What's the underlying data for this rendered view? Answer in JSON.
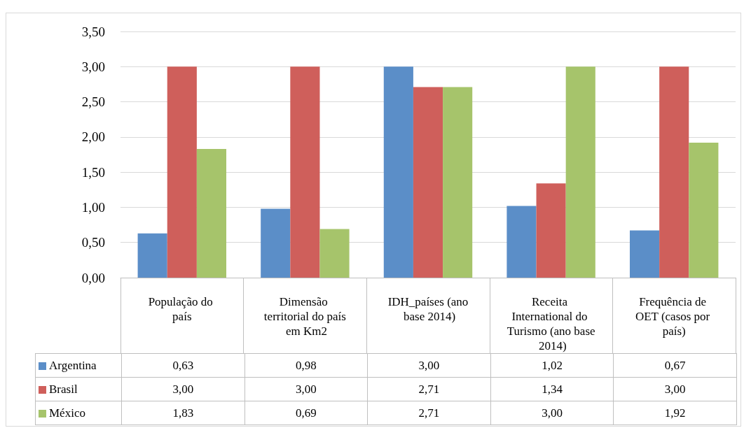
{
  "chart_data": {
    "type": "bar",
    "categories": [
      "População do país",
      "Dimensão territorial do país em Km2",
      "IDH_países (ano base 2014)",
      "Receita International do Turismo (ano base 2014)",
      "Frequência de OET (casos por país)"
    ],
    "series": [
      {
        "name": "Argentina",
        "color": "#5b8ec8",
        "values": [
          0.63,
          0.98,
          3.0,
          1.02,
          0.67
        ],
        "value_labels": [
          "0,63",
          "0,98",
          "3,00",
          "1,02",
          "0,67"
        ]
      },
      {
        "name": "Brasil",
        "color": "#cf5f5b",
        "values": [
          3.0,
          3.0,
          2.71,
          1.34,
          3.0
        ],
        "value_labels": [
          "3,00",
          "3,00",
          "2,71",
          "1,34",
          "3,00"
        ]
      },
      {
        "name": "México",
        "color": "#a6c46b",
        "values": [
          1.83,
          0.69,
          2.71,
          3.0,
          1.92
        ],
        "value_labels": [
          "1,83",
          "0,69",
          "2,71",
          "3,00",
          "1,92"
        ]
      }
    ],
    "ylim": [
      0,
      3.5
    ],
    "yticks": [
      {
        "value": 0,
        "label": "0,00"
      },
      {
        "value": 0.5,
        "label": "0,50"
      },
      {
        "value": 1,
        "label": "1,00"
      },
      {
        "value": 1.5,
        "label": "1,50"
      },
      {
        "value": 2,
        "label": "2,00"
      },
      {
        "value": 2.5,
        "label": "2,50"
      },
      {
        "value": 3,
        "label": "3,00"
      },
      {
        "value": 3.5,
        "label": "3,50"
      }
    ],
    "grid": "y",
    "legend": "bottom"
  }
}
